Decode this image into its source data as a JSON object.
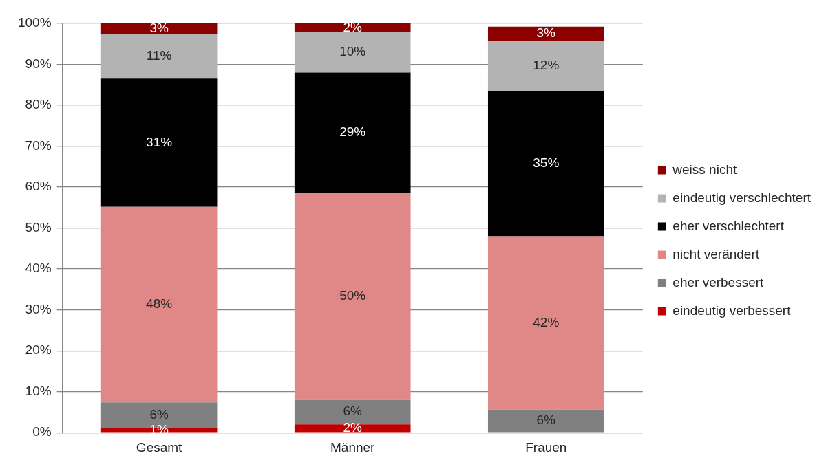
{
  "chart_data": {
    "type": "bar",
    "stacked": true,
    "categories": [
      "Gesamt",
      "Männer",
      "Frauen"
    ],
    "series": [
      {
        "name": "eindeutig verbessert",
        "color": "#c00000",
        "values": [
          1.2,
          2.0,
          0
        ],
        "value_labels": [
          "1%",
          "2%",
          null
        ]
      },
      {
        "name": "eher verbessert",
        "color": "#808080",
        "values": [
          6.2,
          6.2,
          5.6
        ],
        "value_labels": [
          "6%",
          "6%",
          "6%"
        ]
      },
      {
        "name": "nicht verändert",
        "color": "#e08888",
        "values": [
          47.8,
          50.4,
          42.4
        ],
        "value_labels": [
          "48%",
          "50%",
          "42%"
        ]
      },
      {
        "name": "eher verschlechtert",
        "color": "#000000",
        "values": [
          31.3,
          29.4,
          35.4
        ],
        "value_labels": [
          "31%",
          "29%",
          "35%"
        ]
      },
      {
        "name": "eindeutig verschlechtert",
        "color": "#b3b3b3",
        "values": [
          10.8,
          9.8,
          12.4
        ],
        "value_labels": [
          "11%",
          "10%",
          "12%"
        ]
      },
      {
        "name": "weiss nicht",
        "color": "#8b0000",
        "values": [
          2.7,
          2.2,
          3.4
        ],
        "value_labels": [
          "3%",
          "2%",
          "3%"
        ]
      }
    ],
    "ylim": [
      0,
      100
    ],
    "yticks": [
      {
        "value": 0,
        "label": "0%"
      },
      {
        "value": 10,
        "label": "10%"
      },
      {
        "value": 20,
        "label": "20%"
      },
      {
        "value": 30,
        "label": "30%"
      },
      {
        "value": 40,
        "label": "40%"
      },
      {
        "value": 50,
        "label": "50%"
      },
      {
        "value": 60,
        "label": "60%"
      },
      {
        "value": 70,
        "label": "70%"
      },
      {
        "value": 80,
        "label": "80%"
      },
      {
        "value": 90,
        "label": "90%"
      },
      {
        "value": 100,
        "label": "100%"
      }
    ],
    "grid": "y",
    "legend": "right"
  }
}
